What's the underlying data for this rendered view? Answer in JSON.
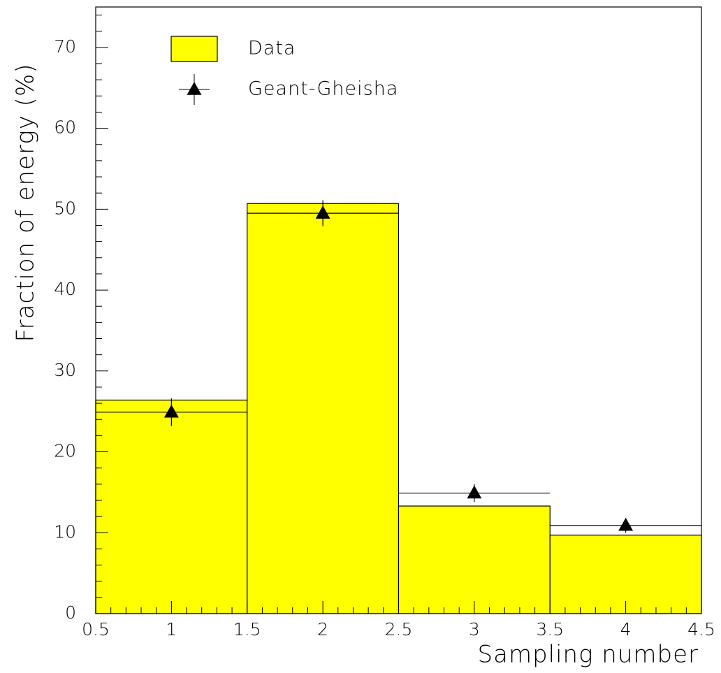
{
  "chart_data": {
    "type": "histogram",
    "xlabel": "Sampling number",
    "ylabel": "Fraction of energy (%)",
    "xlim": [
      0.5,
      4.5
    ],
    "ylim": [
      0,
      75
    ],
    "xticks": [
      0.5,
      1,
      1.5,
      2,
      2.5,
      3,
      3.5,
      4,
      4.5
    ],
    "yticks": [
      0,
      10,
      20,
      30,
      40,
      50,
      60,
      70
    ],
    "histogram": {
      "name": "Data",
      "color": "#ffff00",
      "bins": [
        0.5,
        1.5,
        2.5,
        3.5,
        4.5
      ],
      "values": [
        26.4,
        50.7,
        13.3,
        9.7
      ]
    },
    "points": {
      "name": "Geant-Gheisha",
      "color": "#000000",
      "x": [
        1,
        2,
        3,
        4
      ],
      "values": [
        24.9,
        49.5,
        14.9,
        10.9
      ],
      "errors": [
        1.7,
        1.6,
        1.1,
        0.9
      ],
      "xerr": [
        0.5,
        0.5,
        0.5,
        0.5
      ]
    }
  }
}
